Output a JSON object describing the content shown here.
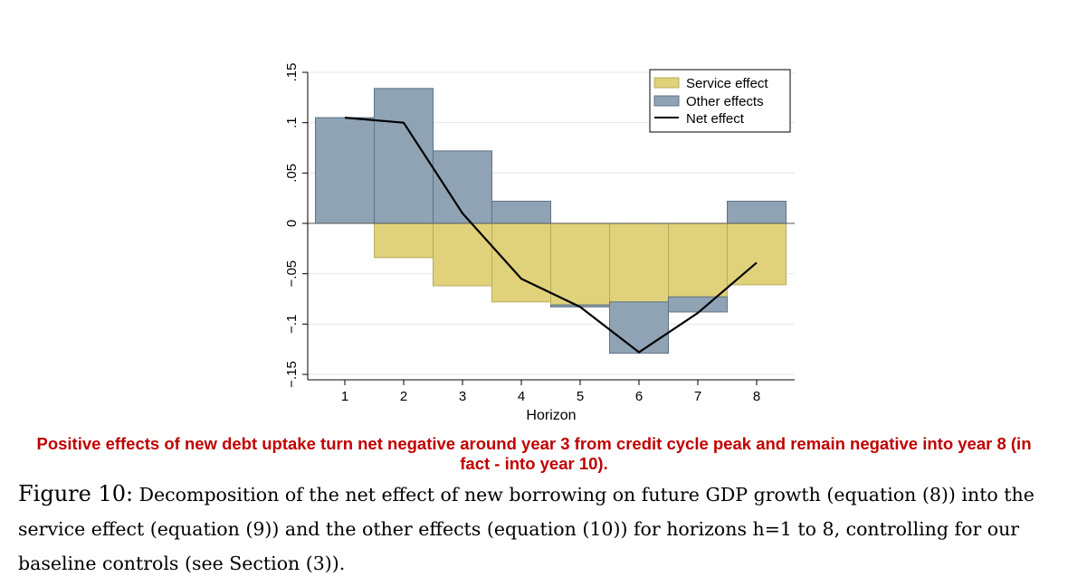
{
  "chart_data": {
    "type": "bar",
    "categories": [
      "1",
      "2",
      "3",
      "4",
      "5",
      "6",
      "7",
      "8"
    ],
    "series": [
      {
        "name": "Service effect",
        "type": "bar",
        "color": "#e0d27b",
        "edge": "#b8ab5a",
        "values": [
          0.0,
          -0.034,
          -0.062,
          -0.078,
          -0.081,
          -0.078,
          -0.073,
          -0.061
        ]
      },
      {
        "name": "Other effects",
        "type": "bar",
        "color": "#8fa3b5",
        "edge": "#5f7384",
        "values": [
          0.105,
          0.134,
          0.072,
          0.022,
          -0.002,
          -0.051,
          -0.015,
          0.022
        ]
      },
      {
        "name": "Net effect",
        "type": "line",
        "color": "#000000",
        "values": [
          0.105,
          0.1,
          0.01,
          -0.055,
          -0.083,
          -0.128,
          -0.089,
          -0.039
        ]
      }
    ],
    "yticks": [
      {
        "value": -0.15,
        "label": "−.15"
      },
      {
        "value": -0.1,
        "label": "−.1"
      },
      {
        "value": -0.05,
        "label": "−.05"
      },
      {
        "value": 0,
        "label": "0"
      },
      {
        "value": 0.05,
        "label": ".05"
      },
      {
        "value": 0.1,
        "label": ".1"
      },
      {
        "value": 0.15,
        "label": ".15"
      }
    ],
    "xlabel": "Horizon",
    "ylabel": "",
    "ylim": [
      -0.15,
      0.15
    ],
    "grid": true,
    "legend_position": "top-right"
  },
  "annotation": "Positive effects of new debt uptake turn net negative around year 3 from credit cycle peak and remain negative into year 8 (in fact - into year 10).",
  "caption": {
    "label": "Figure 10:",
    "text": "Decomposition of the net effect of new borrowing on future GDP growth (equation (8)) into the service effect (equation (9)) and the other effects (equation (10)) for horizons h=1 to 8, controlling for our baseline controls (see Section (3))."
  }
}
